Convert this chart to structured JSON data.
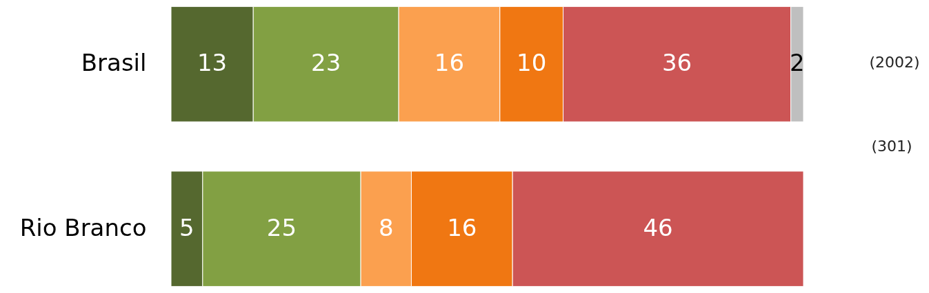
{
  "chart_data": {
    "type": "bar",
    "orientation": "horizontal",
    "stacked": true,
    "data_labels": true,
    "tick_labels": "y",
    "categories": [
      "Brasil",
      "Rio Branco"
    ],
    "series": [
      {
        "color": "#55682f",
        "values": [
          13,
          5
        ]
      },
      {
        "color": "#82a043",
        "values": [
          23,
          25
        ]
      },
      {
        "color": "#fba04f",
        "values": [
          16,
          8
        ]
      },
      {
        "color": "#f07712",
        "values": [
          10,
          16
        ]
      },
      {
        "color": "#cc5555",
        "values": [
          36,
          46
        ]
      },
      {
        "color": "#bfbfbf",
        "values": [
          2,
          null
        ]
      }
    ],
    "annotations": [
      "(2002)",
      "(301)"
    ]
  }
}
